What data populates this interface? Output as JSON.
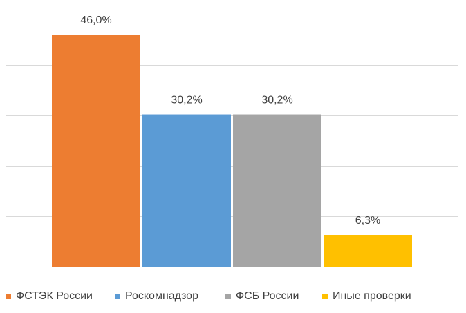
{
  "chart_data": {
    "type": "bar",
    "categories": [
      "ФСТЭК России",
      "Роскомнадзор",
      "ФСБ России",
      "Иные проверки"
    ],
    "values": [
      46.0,
      30.2,
      30.2,
      6.3
    ],
    "value_labels": [
      "46,0%",
      "30,2%",
      "30,2%",
      "6,3%"
    ],
    "colors": [
      "#ED7D31",
      "#5B9BD5",
      "#A5A5A5",
      "#FFC000"
    ],
    "ylim": [
      0,
      50
    ],
    "grid": true,
    "legend_position": "bottom"
  }
}
